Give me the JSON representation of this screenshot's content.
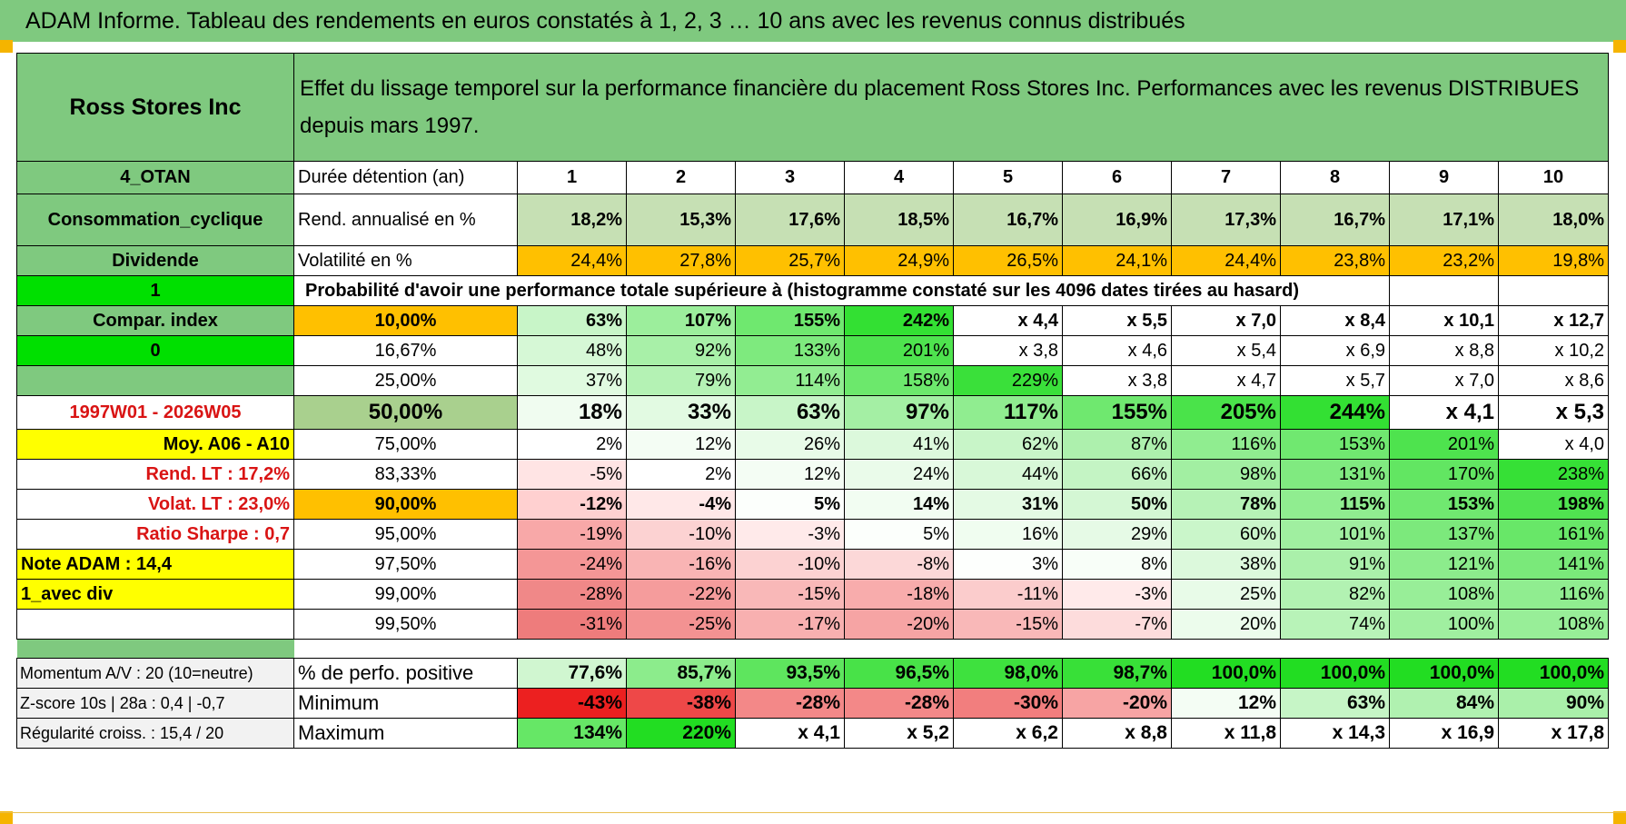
{
  "title": "ADAM Informe. Tableau des rendements en euros constatés à 1, 2, 3 … 10 ans avec les revenus connus distribués",
  "header": {
    "company": "Ross Stores Inc",
    "description": "Effet du lissage temporel sur la performance financière du placement Ross Stores Inc. Performances avec les revenus DISTRIBUES depuis mars 1997."
  },
  "summary_rows": [
    {
      "left": "4_OTAN",
      "left_bg": "#7fc97f",
      "label": "Durée détention (an)",
      "label_bg": "#ffffff",
      "cells": [
        {
          "v": "1",
          "bg": "#ffffff"
        },
        {
          "v": "2",
          "bg": "#ffffff"
        },
        {
          "v": "3",
          "bg": "#ffffff"
        },
        {
          "v": "4",
          "bg": "#ffffff"
        },
        {
          "v": "5",
          "bg": "#ffffff"
        },
        {
          "v": "6",
          "bg": "#ffffff"
        },
        {
          "v": "7",
          "bg": "#ffffff"
        },
        {
          "v": "8",
          "bg": "#ffffff"
        },
        {
          "v": "9",
          "bg": "#ffffff"
        },
        {
          "v": "10",
          "bg": "#ffffff"
        }
      ]
    },
    {
      "left": "Consommation_cyclique",
      "left_bg": "#7fc97f",
      "label": "Rend. annualisé en %",
      "label_bg": "#ffffff",
      "cells": [
        {
          "v": "18,2%",
          "bg": "#c6e0b4"
        },
        {
          "v": "15,3%",
          "bg": "#c6e0b4"
        },
        {
          "v": "17,6%",
          "bg": "#c6e0b4"
        },
        {
          "v": "18,5%",
          "bg": "#c6e0b4"
        },
        {
          "v": "16,7%",
          "bg": "#c6e0b4"
        },
        {
          "v": "16,9%",
          "bg": "#c6e0b4"
        },
        {
          "v": "17,3%",
          "bg": "#c6e0b4"
        },
        {
          "v": "16,7%",
          "bg": "#c6e0b4"
        },
        {
          "v": "17,1%",
          "bg": "#c6e0b4"
        },
        {
          "v": "18,0%",
          "bg": "#c6e0b4"
        }
      ]
    },
    {
      "left": "Dividende",
      "left_bg": "#7fc97f",
      "label": "Volatilité en %",
      "label_bg": "#ffffff",
      "cells": [
        {
          "v": "24,4%",
          "bg": "#ffc000"
        },
        {
          "v": "27,8%",
          "bg": "#ffc000"
        },
        {
          "v": "25,7%",
          "bg": "#ffc000"
        },
        {
          "v": "24,9%",
          "bg": "#ffc000"
        },
        {
          "v": "26,5%",
          "bg": "#ffc000"
        },
        {
          "v": "24,1%",
          "bg": "#ffc000"
        },
        {
          "v": "24,4%",
          "bg": "#ffc000"
        },
        {
          "v": "23,8%",
          "bg": "#ffc000"
        },
        {
          "v": "23,2%",
          "bg": "#ffc000"
        },
        {
          "v": "19,8%",
          "bg": "#ffc000"
        }
      ]
    }
  ],
  "proba_row": {
    "left": "1",
    "left_bg": "#00e000",
    "text": "Probabilité d'avoir une performance totale supérieure à (histogramme constaté sur les 4096 dates tirées au hasard)"
  },
  "proba_rows": [
    {
      "left": "Compar. index",
      "left_bg": "#7fc97f",
      "left_color": "#000000",
      "left_align": "center",
      "pct": "10,00%",
      "pct_bg": "#ffc000",
      "bold": true,
      "big": false,
      "cells": [
        {
          "v": "63%",
          "bg": "#c8f5c8"
        },
        {
          "v": "107%",
          "bg": "#9cee9c"
        },
        {
          "v": "155%",
          "bg": "#6fe86f"
        },
        {
          "v": "242%",
          "bg": "#33e033"
        },
        {
          "v": "x 4,4",
          "bg": "#ffffff"
        },
        {
          "v": "x 5,5",
          "bg": "#ffffff"
        },
        {
          "v": "x 7,0",
          "bg": "#ffffff"
        },
        {
          "v": "x 8,4",
          "bg": "#ffffff"
        },
        {
          "v": "x 10,1",
          "bg": "#ffffff"
        },
        {
          "v": "x 12,7",
          "bg": "#ffffff"
        }
      ]
    },
    {
      "left": "0",
      "left_bg": "#00e000",
      "left_color": "#000000",
      "left_align": "center",
      "pct": "16,67%",
      "pct_bg": "#ffffff",
      "bold": false,
      "big": false,
      "cells": [
        {
          "v": "48%",
          "bg": "#d6f8d6"
        },
        {
          "v": "92%",
          "bg": "#a8f0a8"
        },
        {
          "v": "133%",
          "bg": "#7eea7e"
        },
        {
          "v": "201%",
          "bg": "#4ee34e"
        },
        {
          "v": "x 3,8",
          "bg": "#ffffff"
        },
        {
          "v": "x 4,6",
          "bg": "#ffffff"
        },
        {
          "v": "x 5,4",
          "bg": "#ffffff"
        },
        {
          "v": "x 6,9",
          "bg": "#ffffff"
        },
        {
          "v": "x 8,8",
          "bg": "#ffffff"
        },
        {
          "v": "x 10,2",
          "bg": "#ffffff"
        }
      ]
    },
    {
      "left": "",
      "left_bg": "#7fc97f",
      "left_color": "#000000",
      "left_align": "center",
      "pct": "25,00%",
      "pct_bg": "#ffffff",
      "bold": false,
      "big": false,
      "cells": [
        {
          "v": "37%",
          "bg": "#e0fae0"
        },
        {
          "v": "79%",
          "bg": "#b4f2b4"
        },
        {
          "v": "114%",
          "bg": "#92ed92"
        },
        {
          "v": "158%",
          "bg": "#6ce86c"
        },
        {
          "v": "229%",
          "bg": "#3ae03a"
        },
        {
          "v": "x 3,8",
          "bg": "#ffffff"
        },
        {
          "v": "x 4,7",
          "bg": "#ffffff"
        },
        {
          "v": "x 5,7",
          "bg": "#ffffff"
        },
        {
          "v": "x 7,0",
          "bg": "#ffffff"
        },
        {
          "v": "x 8,6",
          "bg": "#ffffff"
        }
      ]
    },
    {
      "left": "1997W01 - 2026W05",
      "left_bg": "#ffffff",
      "left_color": "#d91414",
      "left_align": "center",
      "pct": "50,00%",
      "pct_bg": "#a9d08e",
      "bold": true,
      "big": true,
      "cells": [
        {
          "v": "18%",
          "bg": "#f0fcf0"
        },
        {
          "v": "33%",
          "bg": "#e2fae2"
        },
        {
          "v": "63%",
          "bg": "#c8f5c8"
        },
        {
          "v": "97%",
          "bg": "#a4efa4"
        },
        {
          "v": "117%",
          "bg": "#90ed90"
        },
        {
          "v": "155%",
          "bg": "#6fe86f"
        },
        {
          "v": "205%",
          "bg": "#4ae34a"
        },
        {
          "v": "244%",
          "bg": "#33e033"
        },
        {
          "v": "x 4,1",
          "bg": "#ffffff"
        },
        {
          "v": "x 5,3",
          "bg": "#ffffff"
        }
      ]
    },
    {
      "left": "Moy. A06 - A10",
      "left_bg": "#ffff00",
      "left_color": "#000000",
      "left_align": "right",
      "pct": "75,00%",
      "pct_bg": "#ffffff",
      "bold": false,
      "big": false,
      "cells": [
        {
          "v": "2%",
          "bg": "#ffffff"
        },
        {
          "v": "12%",
          "bg": "#f4fdf4"
        },
        {
          "v": "26%",
          "bg": "#e8fbe8"
        },
        {
          "v": "41%",
          "bg": "#dcf9dc"
        },
        {
          "v": "62%",
          "bg": "#c8f5c8"
        },
        {
          "v": "87%",
          "bg": "#adf0ad"
        },
        {
          "v": "116%",
          "bg": "#90ed90"
        },
        {
          "v": "153%",
          "bg": "#70e870"
        },
        {
          "v": "201%",
          "bg": "#4ee34e"
        },
        {
          "v": "x 4,0",
          "bg": "#ffffff"
        }
      ]
    },
    {
      "left": "Rend. LT :    17,2%",
      "left_bg": "#ffffff",
      "left_color": "#d91414",
      "left_align": "right",
      "pct": "83,33%",
      "pct_bg": "#ffffff",
      "bold": false,
      "big": false,
      "cells": [
        {
          "v": "-5%",
          "bg": "#ffe4e4"
        },
        {
          "v": "2%",
          "bg": "#ffffff"
        },
        {
          "v": "12%",
          "bg": "#f4fdf4"
        },
        {
          "v": "24%",
          "bg": "#eafbea"
        },
        {
          "v": "44%",
          "bg": "#d8f8d8"
        },
        {
          "v": "66%",
          "bg": "#c4f4c4"
        },
        {
          "v": "98%",
          "bg": "#a2efa2"
        },
        {
          "v": "131%",
          "bg": "#80ea80"
        },
        {
          "v": "170%",
          "bg": "#62e662"
        },
        {
          "v": "238%",
          "bg": "#36e036"
        }
      ]
    },
    {
      "left": "Volat. LT :    23,0%",
      "left_bg": "#ffffff",
      "left_color": "#d91414",
      "left_align": "right",
      "pct": "90,00%",
      "pct_bg": "#ffc000",
      "bold": true,
      "big": false,
      "cells": [
        {
          "v": "-12%",
          "bg": "#ffd0d0"
        },
        {
          "v": "-4%",
          "bg": "#ffe8e8"
        },
        {
          "v": "5%",
          "bg": "#fcfffc"
        },
        {
          "v": "14%",
          "bg": "#f2fdf2"
        },
        {
          "v": "31%",
          "bg": "#e4fae4"
        },
        {
          "v": "50%",
          "bg": "#d4f7d4"
        },
        {
          "v": "78%",
          "bg": "#b6f2b6"
        },
        {
          "v": "115%",
          "bg": "#90ed90"
        },
        {
          "v": "153%",
          "bg": "#70e870"
        },
        {
          "v": "198%",
          "bg": "#50e350"
        }
      ]
    },
    {
      "left": "Ratio Sharpe :     0,7",
      "left_bg": "#ffffff",
      "left_color": "#d91414",
      "left_align": "right",
      "pct": "95,00%",
      "pct_bg": "#ffffff",
      "bold": false,
      "big": false,
      "cells": [
        {
          "v": "-19%",
          "bg": "#f8a8a8"
        },
        {
          "v": "-10%",
          "bg": "#fcd2d2"
        },
        {
          "v": "-3%",
          "bg": "#ffeaea"
        },
        {
          "v": "5%",
          "bg": "#fcfffc"
        },
        {
          "v": "16%",
          "bg": "#f0fdf0"
        },
        {
          "v": "29%",
          "bg": "#e6fae6"
        },
        {
          "v": "60%",
          "bg": "#caf6ca"
        },
        {
          "v": "101%",
          "bg": "#a0efa0"
        },
        {
          "v": "137%",
          "bg": "#7ce97c"
        },
        {
          "v": "161%",
          "bg": "#68e768"
        }
      ]
    },
    {
      "left": "Note ADAM : 14,4",
      "left_bg": "#ffff00",
      "left_color": "#000000",
      "left_align": "left",
      "pct": "97,50%",
      "pct_bg": "#ffffff",
      "bold": false,
      "big": false,
      "cells": [
        {
          "v": "-24%",
          "bg": "#f49696"
        },
        {
          "v": "-16%",
          "bg": "#f9b4b4"
        },
        {
          "v": "-10%",
          "bg": "#fcd2d2"
        },
        {
          "v": "-8%",
          "bg": "#fcd8d8"
        },
        {
          "v": "3%",
          "bg": "#fdfffd"
        },
        {
          "v": "8%",
          "bg": "#f8fef8"
        },
        {
          "v": "38%",
          "bg": "#dcf9dc"
        },
        {
          "v": "91%",
          "bg": "#aaf0aa"
        },
        {
          "v": "121%",
          "bg": "#8cec8c"
        },
        {
          "v": "141%",
          "bg": "#7ae97a"
        }
      ]
    },
    {
      "left": "1_avec div",
      "left_bg": "#ffff00",
      "left_color": "#000000",
      "left_align": "left",
      "pct": "99,00%",
      "pct_bg": "#ffffff",
      "bold": false,
      "big": false,
      "cells": [
        {
          "v": "-28%",
          "bg": "#f08888"
        },
        {
          "v": "-22%",
          "bg": "#f59c9c"
        },
        {
          "v": "-15%",
          "bg": "#f9b8b8"
        },
        {
          "v": "-18%",
          "bg": "#f8acac"
        },
        {
          "v": "-11%",
          "bg": "#fbcccc"
        },
        {
          "v": "-3%",
          "bg": "#ffeaea"
        },
        {
          "v": "25%",
          "bg": "#e8fbe8"
        },
        {
          "v": "82%",
          "bg": "#b2f2b2"
        },
        {
          "v": "108%",
          "bg": "#98ee98"
        },
        {
          "v": "116%",
          "bg": "#90ed90"
        }
      ]
    },
    {
      "left": "",
      "left_bg": "#ffffff",
      "left_color": "#000000",
      "left_align": "left",
      "pct": "99,50%",
      "pct_bg": "#ffffff",
      "bold": false,
      "big": false,
      "cells": [
        {
          "v": "-31%",
          "bg": "#ee7c7c"
        },
        {
          "v": "-25%",
          "bg": "#f39292"
        },
        {
          "v": "-17%",
          "bg": "#f8b0b0"
        },
        {
          "v": "-20%",
          "bg": "#f6a4a4"
        },
        {
          "v": "-15%",
          "bg": "#f9b8b8"
        },
        {
          "v": "-7%",
          "bg": "#fddcdc"
        },
        {
          "v": "20%",
          "bg": "#ecfcec"
        },
        {
          "v": "74%",
          "bg": "#b8f3b8"
        },
        {
          "v": "100%",
          "bg": "#a0efa0"
        },
        {
          "v": "108%",
          "bg": "#98ee98"
        }
      ]
    }
  ],
  "bottom_rows": [
    {
      "left": "Momentum A/V : 20 (10=neutre)",
      "label": "% de perfo. positive",
      "cells": [
        {
          "v": "77,6%",
          "bg": "#d0f6d0"
        },
        {
          "v": "85,7%",
          "bg": "#8cec8c"
        },
        {
          "v": "93,5%",
          "bg": "#5ee55e"
        },
        {
          "v": "96,5%",
          "bg": "#48e248"
        },
        {
          "v": "98,0%",
          "bg": "#3ee13e"
        },
        {
          "v": "98,7%",
          "bg": "#38e038"
        },
        {
          "v": "100,0%",
          "bg": "#22dd22"
        },
        {
          "v": "100,0%",
          "bg": "#22dd22"
        },
        {
          "v": "100,0%",
          "bg": "#22dd22"
        },
        {
          "v": "100,0%",
          "bg": "#22dd22"
        }
      ]
    },
    {
      "left": "Z-score 10s | 28a : 0,4 | -0,7",
      "label": "Minimum",
      "cells": [
        {
          "v": "-43%",
          "bg": "#ec2020"
        },
        {
          "v": "-38%",
          "bg": "#ee4848"
        },
        {
          "v": "-28%",
          "bg": "#f38888"
        },
        {
          "v": "-28%",
          "bg": "#f38888"
        },
        {
          "v": "-30%",
          "bg": "#f27e7e"
        },
        {
          "v": "-20%",
          "bg": "#f7a4a4"
        },
        {
          "v": "12%",
          "bg": "#f4fdf4"
        },
        {
          "v": "63%",
          "bg": "#c6f5c6"
        },
        {
          "v": "84%",
          "bg": "#b0f1b0"
        },
        {
          "v": "90%",
          "bg": "#aaf0aa"
        }
      ]
    },
    {
      "left": "Régularité croiss. : 15,4 / 20",
      "label": "Maximum",
      "cells": [
        {
          "v": "134%",
          "bg": "#66e766"
        },
        {
          "v": "220%",
          "bg": "#22dd22"
        },
        {
          "v": "x 4,1",
          "bg": "#ffffff"
        },
        {
          "v": "x 5,2",
          "bg": "#ffffff"
        },
        {
          "v": "x 6,2",
          "bg": "#ffffff"
        },
        {
          "v": "x 8,8",
          "bg": "#ffffff"
        },
        {
          "v": "x 11,8",
          "bg": "#ffffff"
        },
        {
          "v": "x 14,3",
          "bg": "#ffffff"
        },
        {
          "v": "x 16,9",
          "bg": "#ffffff"
        },
        {
          "v": "x 17,8",
          "bg": "#ffffff"
        }
      ]
    }
  ]
}
